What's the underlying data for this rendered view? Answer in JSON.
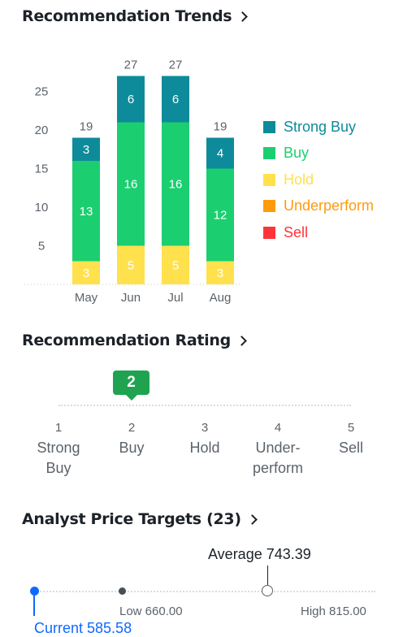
{
  "trends": {
    "title": "Recommendation Trends",
    "chart_data": {
      "type": "bar",
      "stacked": true,
      "categories": [
        "May",
        "Jun",
        "Jul",
        "Aug"
      ],
      "totals": [
        19,
        27,
        27,
        19
      ],
      "ylim": [
        0,
        27
      ],
      "yticks": [
        5,
        10,
        15,
        20,
        25
      ],
      "legend_position": "right",
      "series": [
        {
          "name": "Strong Buy",
          "color": "#0e8b9a",
          "values": [
            3,
            6,
            6,
            4
          ]
        },
        {
          "name": "Buy",
          "color": "#1bcf70",
          "values": [
            13,
            16,
            16,
            12
          ]
        },
        {
          "name": "Hold",
          "color": "#ffe14d",
          "values": [
            3,
            5,
            5,
            3
          ]
        },
        {
          "name": "Underperform",
          "color": "#ff9b0d",
          "values": [
            0,
            0,
            0,
            0
          ]
        },
        {
          "name": "Sell",
          "color": "#ff333a",
          "values": [
            0,
            0,
            0,
            0
          ]
        }
      ]
    }
  },
  "rating": {
    "title": "Recommendation Rating",
    "value": "2",
    "scale": [
      {
        "num": "1",
        "label_lines": [
          "Strong",
          "Buy"
        ]
      },
      {
        "num": "2",
        "label_lines": [
          "Buy",
          ""
        ]
      },
      {
        "num": "3",
        "label_lines": [
          "Hold",
          ""
        ]
      },
      {
        "num": "4",
        "label_lines": [
          "Under-",
          "perform"
        ]
      },
      {
        "num": "5",
        "label_lines": [
          "Sell",
          ""
        ]
      }
    ]
  },
  "targets": {
    "title": "Analyst Price Targets (23)",
    "current_label": "Current 585.58",
    "low_label": "Low 660.00",
    "average_label": "Average 743.39",
    "high_label": "High 815.00",
    "current": 585.58,
    "low": 660.0,
    "average": 743.39,
    "high": 815.0,
    "current_color": "#0f69ff"
  }
}
